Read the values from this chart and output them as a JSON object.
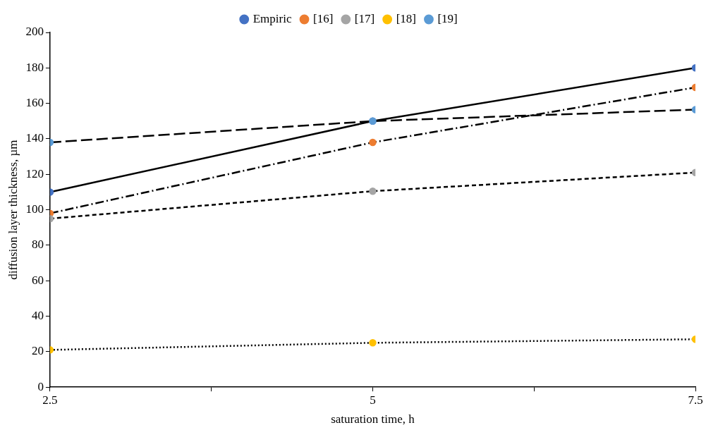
{
  "chart_data": {
    "type": "line",
    "xlabel": "saturation time, h",
    "ylabel": "diffusion layer thickness, µm",
    "x": [
      2.5,
      5,
      7.5
    ],
    "xlim": [
      2.5,
      7.5
    ],
    "xticks": [
      2.5,
      {
        "value": 3.75,
        "label": null
      },
      5,
      {
        "value": 6.25,
        "label": null
      },
      7.5
    ],
    "ylim": [
      0,
      200
    ],
    "yticks": [
      0,
      20,
      40,
      60,
      80,
      100,
      120,
      140,
      160,
      180,
      200
    ],
    "grid": false,
    "legend": "top",
    "marker": "circle",
    "series": [
      {
        "name": "Empiric",
        "color": "#4472c4",
        "line_style": "solid",
        "values": [
          110,
          150,
          180
        ]
      },
      {
        "name": "[16]",
        "color": "#ed7d31",
        "line_style": "dashdot",
        "values": [
          98,
          138,
          169
        ]
      },
      {
        "name": "[17]",
        "color": "#a5a5a5",
        "line_style": "dashed",
        "values": [
          95,
          110.5,
          121
        ]
      },
      {
        "name": "[18]",
        "color": "#ffc000",
        "line_style": "dotted",
        "values": [
          21,
          25,
          27
        ]
      },
      {
        "name": "[19]",
        "color": "#5b9bd5",
        "line_style": "longdash",
        "values": [
          138,
          150,
          156.5
        ]
      }
    ]
  }
}
